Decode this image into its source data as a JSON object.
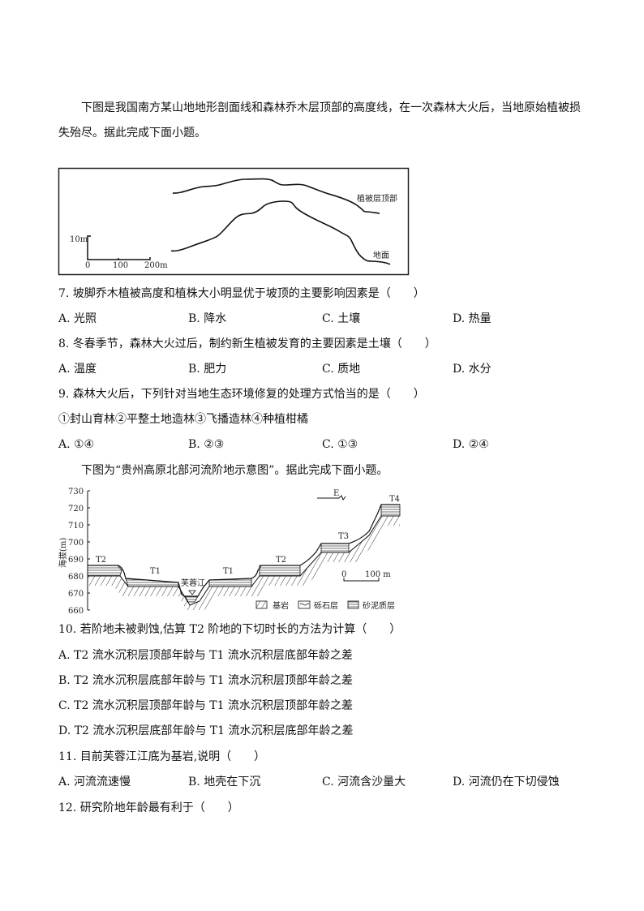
{
  "intro1": {
    "line1": "下图是我国南方某山地地形剖面线和森林乔木层顶部的高度线，在一次森林大火后，当地原始植被损",
    "line2": "失殆尽。据此完成下面小题。"
  },
  "figure1": {
    "canopy_label": "植被层顶部",
    "ground_label": "地面",
    "scale_vertical": "10m",
    "scale_0": "0",
    "scale_100": "100",
    "scale_200": "200m"
  },
  "questions": [
    {
      "stem": "7. 坡脚乔木植被高度和植株大小明显优于坡顶的主要影响因素是（　　）",
      "options": [
        "A. 光照",
        "B. 降水",
        "C. 土壤",
        "D. 热量"
      ]
    },
    {
      "stem": "8. 冬春季节，森林大火过后，制约新生植被发育的主要因素是土壤（　　）",
      "options": [
        "A. 温度",
        "B. 肥力",
        "C. 质地",
        "D. 水分"
      ]
    },
    {
      "stem": "9. 森林大火后，下列针对当地生态环境修复的处理方式恰当的是（　　）",
      "extra": "①封山育林②平整土地造林③飞播造林④种植柑橘",
      "options": [
        "A. ①④",
        "B. ②③",
        "C. ①③",
        "D. ②④"
      ]
    }
  ],
  "intro2": "下图为“贵州高原北部河流阶地示意图”。据此完成下面小题。",
  "figure2": {
    "ylabel": "海拔(m)",
    "yticks": [
      "730",
      "720",
      "710",
      "700",
      "690",
      "680",
      "670",
      "660"
    ],
    "terrace_labels": [
      "T2",
      "T1",
      "T1",
      "T2",
      "T3",
      "T4"
    ],
    "river_label": "芙蓉江",
    "direction_label": "E",
    "scale_0": "0",
    "scale_100": "100 m",
    "legend": [
      "基岩",
      "砾石层",
      "砂泥质层"
    ]
  },
  "questions2": [
    {
      "stem": "10. 若阶地未被剥蚀,估算 T2 阶地的下切时长的方法为计算（　　）",
      "options": [
        "A. T2 流水沉积层顶部年龄与 T1 流水沉积层底部年龄之差",
        "B. T2 流水沉积层底部年龄与 T1 流水沉积层顶部年龄之差",
        "C. T2 流水沉积层顶部年龄与 T1 流水沉积层顶部年龄之差",
        "D. T2 流水沉积层底部年龄与 T1 流水沉积层底部年龄之差"
      ]
    },
    {
      "stem": "11. 目前芙蓉江江底为基岩,说明（　　）",
      "options": [
        "A. 河流流速慢",
        "B. 地壳在下沉",
        "C. 河流含沙量大",
        "D. 河流仍在下切侵蚀"
      ]
    },
    {
      "stem": "12. 研究阶地年龄最有利于（　　）"
    }
  ]
}
